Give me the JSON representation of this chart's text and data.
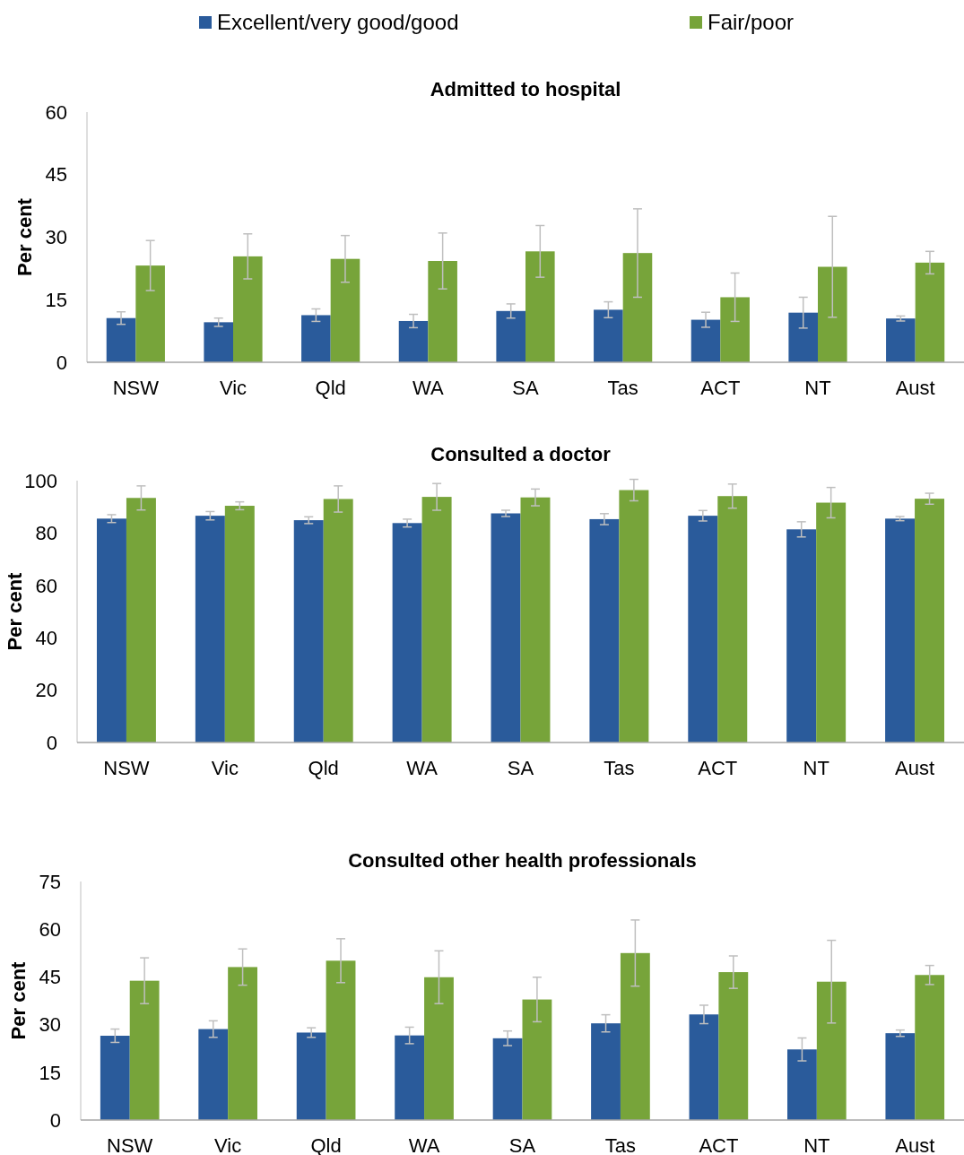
{
  "chart_data": [
    {
      "type": "bar",
      "title": "Admitted to hospital",
      "ylabel": "Per cent",
      "categories": [
        "NSW",
        "Vic",
        "Qld",
        "WA",
        "SA",
        "Tas",
        "ACT",
        "NT",
        "Aust"
      ],
      "ylim": [
        0,
        60
      ],
      "yticks": [
        0,
        15,
        30,
        45,
        60
      ],
      "legend": "top",
      "grid": false,
      "series": [
        {
          "name": "Excellent/very good/good",
          "color": "#2a5b9b",
          "values": [
            10.6,
            9.6,
            11.3,
            9.9,
            12.3,
            12.6,
            10.2,
            11.9,
            10.5
          ],
          "errors": [
            1.5,
            1.0,
            1.5,
            1.6,
            1.7,
            1.9,
            1.8,
            3.7,
            0.6
          ]
        },
        {
          "name": "Fair/poor",
          "color": "#77a43a",
          "values": [
            23.2,
            25.4,
            24.8,
            24.3,
            26.6,
            26.2,
            15.6,
            22.9,
            23.9
          ],
          "errors": [
            6.0,
            5.4,
            5.6,
            6.7,
            6.2,
            10.6,
            5.8,
            12.1,
            2.7
          ]
        }
      ]
    },
    {
      "type": "bar",
      "title": "Consulted a doctor",
      "ylabel": "Per cent",
      "categories": [
        "NSW",
        "Vic",
        "Qld",
        "WA",
        "SA",
        "Tas",
        "ACT",
        "NT",
        "Aust"
      ],
      "ylim": [
        0,
        100
      ],
      "yticks": [
        0,
        20,
        40,
        60,
        80,
        100
      ],
      "grid": false,
      "series": [
        {
          "color": "#2a5b9b",
          "values": [
            85.5,
            86.6,
            84.9,
            83.8,
            87.5,
            85.3,
            86.6,
            81.4,
            85.5
          ],
          "errors": [
            1.5,
            1.6,
            1.3,
            1.5,
            1.2,
            2.1,
            2.0,
            2.9,
            0.8
          ]
        },
        {
          "color": "#77a43a",
          "values": [
            93.4,
            90.4,
            93.0,
            93.8,
            93.6,
            96.4,
            94.1,
            91.6,
            93.1
          ],
          "errors": [
            4.6,
            1.5,
            5.0,
            5.1,
            3.2,
            4.1,
            4.6,
            5.8,
            2.1
          ]
        }
      ]
    },
    {
      "type": "bar",
      "title": "Consulted other health professionals",
      "ylabel": "Per cent",
      "categories": [
        "NSW",
        "Vic",
        "Qld",
        "WA",
        "SA",
        "Tas",
        "ACT",
        "NT",
        "Aust"
      ],
      "ylim": [
        0,
        75
      ],
      "yticks": [
        0,
        15,
        30,
        45,
        60,
        75
      ],
      "grid": false,
      "series": [
        {
          "color": "#2a5b9b",
          "values": [
            26.5,
            28.6,
            27.5,
            26.6,
            25.7,
            30.4,
            33.2,
            22.2,
            27.3
          ],
          "errors": [
            2.1,
            2.6,
            1.5,
            2.6,
            2.3,
            2.7,
            2.9,
            3.6,
            1.0
          ]
        },
        {
          "color": "#77a43a",
          "values": [
            43.8,
            48.1,
            50.1,
            44.9,
            37.9,
            52.5,
            46.5,
            43.5,
            45.6
          ],
          "errors": [
            7.2,
            5.7,
            6.9,
            8.3,
            7.0,
            10.4,
            5.1,
            13.0,
            3.0
          ]
        }
      ]
    }
  ]
}
